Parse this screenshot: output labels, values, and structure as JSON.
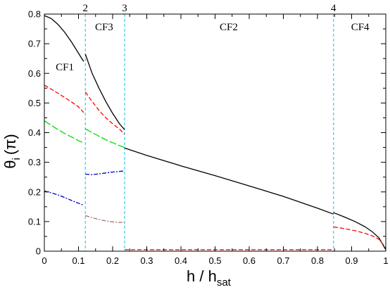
{
  "chart_data": {
    "type": "line",
    "xlabel": "h / h",
    "xlabel_sub": "sat",
    "ylabel": "θ",
    "ylabel_sub": "i",
    "ylabel_unit": "(π)",
    "xlim": [
      0,
      1
    ],
    "ylim": [
      0,
      0.8
    ],
    "xticks": [
      0,
      0.1,
      0.2,
      0.3,
      0.4,
      0.5,
      0.6,
      0.7,
      0.8,
      0.9,
      1
    ],
    "xtick_labels": [
      "0",
      "0.1",
      "0.2",
      "0.3",
      "0.4",
      "0.5",
      "0.6",
      "0.7",
      "0.8",
      "0.9",
      "1"
    ],
    "yticks": [
      0,
      0.1,
      0.2,
      0.3,
      0.4,
      0.5,
      0.6,
      0.7,
      0.8
    ],
    "ytick_labels": [
      "0",
      "0.1",
      "0.2",
      "0.3",
      "0.4",
      "0.5",
      "0.6",
      "0.7",
      "0.8"
    ],
    "boundaries": [
      {
        "label": "2",
        "x": 0.12
      },
      {
        "label": "3",
        "x": 0.235
      },
      {
        "label": "4",
        "x": 0.847
      }
    ],
    "regions": [
      {
        "label": "CF1",
        "x": 0.06,
        "y": 0.61
      },
      {
        "label": "CF3",
        "x": 0.175,
        "y": 0.745
      },
      {
        "label": "CF2",
        "x": 0.54,
        "y": 0.745
      },
      {
        "label": "CF4",
        "x": 0.925,
        "y": 0.745
      }
    ],
    "colors": {
      "boundary": "#00c8e8",
      "black": "#000000",
      "red": "#ff0000",
      "green": "#00e000",
      "blue": "#0000c0",
      "brown": "#a07070"
    },
    "series": [
      {
        "color": "#000000",
        "dash": "",
        "x": [
          0,
          0.02,
          0.04,
          0.06,
          0.08,
          0.1,
          0.115
        ],
        "y": [
          0.795,
          0.785,
          0.765,
          0.738,
          0.705,
          0.668,
          0.64
        ]
      },
      {
        "color": "#000000",
        "dash": "",
        "x": [
          0.12,
          0.14,
          0.16,
          0.18,
          0.2,
          0.22,
          0.235
        ],
        "y": [
          0.665,
          0.6,
          0.55,
          0.505,
          0.465,
          0.43,
          0.41
        ]
      },
      {
        "color": "#000000",
        "dash": "",
        "x": [
          0.235,
          0.3,
          0.4,
          0.5,
          0.6,
          0.7,
          0.8,
          0.847
        ],
        "y": [
          0.348,
          0.323,
          0.288,
          0.255,
          0.22,
          0.185,
          0.145,
          0.125
        ]
      },
      {
        "color": "#000000",
        "dash": "",
        "x": [
          0.847,
          0.88,
          0.91,
          0.94,
          0.96,
          0.98,
          1.0
        ],
        "y": [
          0.13,
          0.115,
          0.1,
          0.082,
          0.066,
          0.045,
          0.005
        ]
      },
      {
        "color": "#ff0000",
        "dash": "6,3",
        "x": [
          0,
          0.02,
          0.04,
          0.06,
          0.08,
          0.1,
          0.115
        ],
        "y": [
          0.56,
          0.547,
          0.533,
          0.518,
          0.503,
          0.487,
          0.468
        ]
      },
      {
        "color": "#ff0000",
        "dash": "6,3",
        "x": [
          0.12,
          0.14,
          0.16,
          0.18,
          0.2,
          0.22,
          0.235
        ],
        "y": [
          0.537,
          0.505,
          0.475,
          0.45,
          0.43,
          0.412,
          0.395
        ]
      },
      {
        "color": "#ff0000",
        "dash": "6,3",
        "x": [
          0.235,
          0.4,
          0.6,
          0.8,
          0.847
        ],
        "y": [
          0.005,
          0.005,
          0.005,
          0.005,
          0.005
        ]
      },
      {
        "color": "#ff0000",
        "dash": "6,3",
        "x": [
          0.847,
          0.88,
          0.91,
          0.94,
          0.96,
          0.98,
          1.0
        ],
        "y": [
          0.082,
          0.076,
          0.069,
          0.06,
          0.052,
          0.04,
          0.012
        ]
      },
      {
        "color": "#00e000",
        "dash": "10,3",
        "x": [
          0,
          0.02,
          0.04,
          0.06,
          0.08,
          0.1,
          0.115
        ],
        "y": [
          0.44,
          0.425,
          0.41,
          0.397,
          0.385,
          0.373,
          0.365
        ]
      },
      {
        "color": "#00e000",
        "dash": "10,3",
        "x": [
          0.12,
          0.14,
          0.16,
          0.18,
          0.2,
          0.22,
          0.235
        ],
        "y": [
          0.413,
          0.4,
          0.388,
          0.376,
          0.366,
          0.356,
          0.35
        ]
      },
      {
        "color": "#0000c0",
        "dash": "6,2,2,2",
        "x": [
          0,
          0.02,
          0.04,
          0.06,
          0.08,
          0.1,
          0.115
        ],
        "y": [
          0.203,
          0.197,
          0.19,
          0.181,
          0.171,
          0.162,
          0.155
        ]
      },
      {
        "color": "#0000c0",
        "dash": "6,2,2,2",
        "x": [
          0.12,
          0.14,
          0.16,
          0.18,
          0.2,
          0.22,
          0.235
        ],
        "y": [
          0.26,
          0.258,
          0.261,
          0.264,
          0.267,
          0.269,
          0.271
        ]
      },
      {
        "color": "#a07070",
        "dash": "6,2,2,2",
        "x": [
          0.12,
          0.14,
          0.16,
          0.18,
          0.2,
          0.22,
          0.235
        ],
        "y": [
          0.12,
          0.113,
          0.107,
          0.102,
          0.099,
          0.097,
          0.097
        ]
      }
    ]
  }
}
